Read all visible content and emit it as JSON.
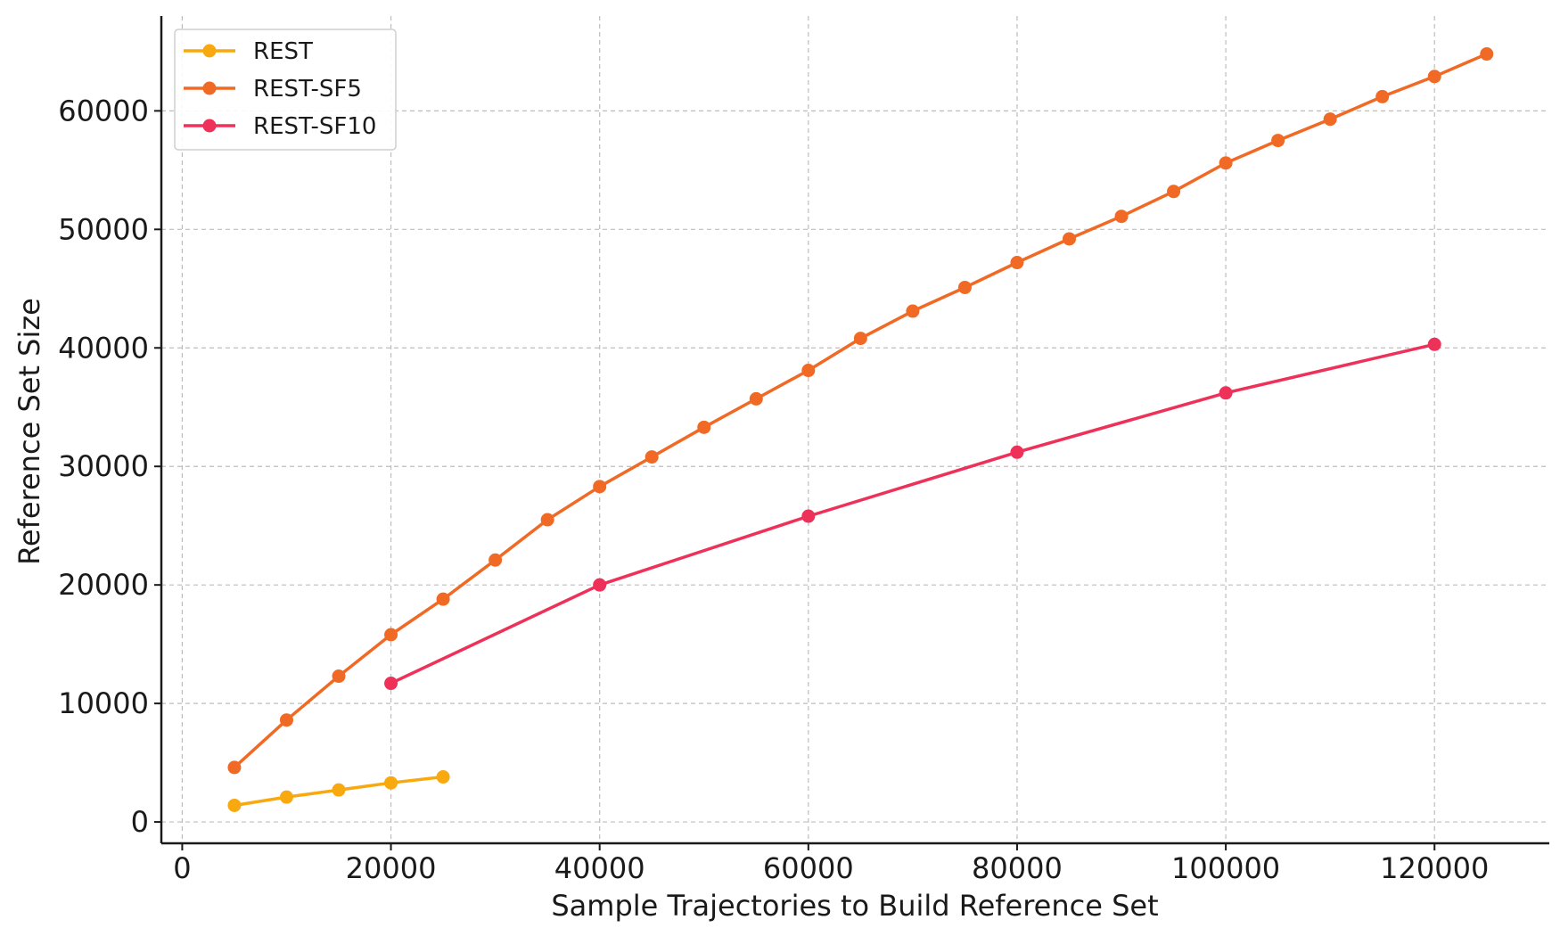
{
  "chart_data": {
    "type": "line",
    "title": "",
    "xlabel": "Sample Trajectories to Build Reference Set",
    "ylabel": "Reference Set Size",
    "xlim": [
      -2000,
      131000
    ],
    "ylim": [
      -1800,
      68000
    ],
    "xticks": [
      0,
      20000,
      40000,
      60000,
      80000,
      100000,
      120000
    ],
    "yticks": [
      0,
      10000,
      20000,
      30000,
      40000,
      50000,
      60000
    ],
    "grid": true,
    "legend_position": "top-left",
    "series": [
      {
        "name": "REST",
        "color": "#f7a90f",
        "x": [
          5000,
          10000,
          15000,
          20000,
          25000
        ],
        "y": [
          1400,
          2100,
          2700,
          3300,
          3800
        ]
      },
      {
        "name": "REST-SF5",
        "color": "#f06a25",
        "x": [
          5000,
          10000,
          15000,
          20000,
          25000,
          30000,
          35000,
          40000,
          45000,
          50000,
          55000,
          60000,
          65000,
          70000,
          75000,
          80000,
          85000,
          90000,
          95000,
          100000,
          105000,
          110000,
          115000,
          120000,
          125000
        ],
        "y": [
          4600,
          8600,
          12300,
          15800,
          18800,
          22100,
          25500,
          28300,
          30800,
          33300,
          35700,
          38100,
          40800,
          43100,
          45100,
          47200,
          49200,
          51100,
          53200,
          55600,
          57500,
          59300,
          61200,
          62900,
          64800
        ]
      },
      {
        "name": "REST-SF10",
        "color": "#ee3158",
        "x": [
          20000,
          40000,
          60000,
          80000,
          100000,
          120000
        ],
        "y": [
          11700,
          20000,
          25800,
          31200,
          36200,
          40300
        ]
      }
    ]
  }
}
